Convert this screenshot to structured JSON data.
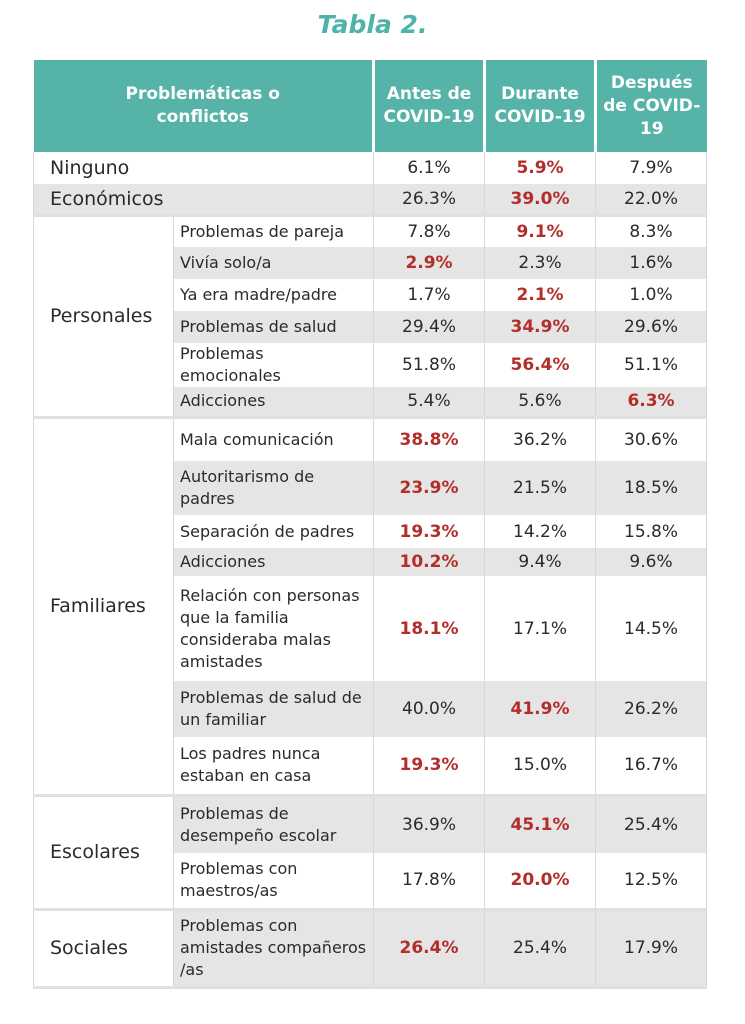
{
  "title": "Tabla 2.",
  "header": {
    "col1": "Problemáticas o conflictos",
    "col2": "Antes de COVID-19",
    "col3": "Durante COVID-19",
    "col4": "Después de COVID-19"
  },
  "colors": {
    "accent": "#56b3a8",
    "title": "#4fb3a9",
    "highlight": "#b32e2a",
    "stripe": "#e5e5e5"
  },
  "rows": [
    {
      "cat": "Ninguno",
      "v": [
        "6.1%",
        "5.9%",
        "7.9%"
      ],
      "hl": 1
    },
    {
      "cat": "Económicos",
      "v": [
        "26.3%",
        "39.0%",
        "22.0%"
      ],
      "hl": 1
    },
    {
      "cat": "Personales",
      "sub": "Problemas de pareja",
      "v": [
        "7.8%",
        "9.1%",
        "8.3%"
      ],
      "hl": 1
    },
    {
      "sub": "Vivía solo/a",
      "v": [
        "2.9%",
        "2.3%",
        "1.6%"
      ],
      "hl": 0
    },
    {
      "sub": "Ya era madre/padre",
      "v": [
        "1.7%",
        "2.1%",
        "1.0%"
      ],
      "hl": 1
    },
    {
      "sub": "Problemas de salud",
      "v": [
        "29.4%",
        "34.9%",
        "29.6%"
      ],
      "hl": 1
    },
    {
      "sub": "Problemas emocionales",
      "v": [
        "51.8%",
        "56.4%",
        "51.1%"
      ],
      "hl": 1
    },
    {
      "sub": "Adicciones",
      "v": [
        "5.4%",
        "5.6%",
        "6.3%"
      ],
      "hl": 2
    },
    {
      "cat": "Familiares",
      "sub": "Mala comunicación",
      "v": [
        "38.8%",
        "36.2%",
        "30.6%"
      ],
      "hl": 0
    },
    {
      "sub": "Autoritarismo de padres",
      "v": [
        "23.9%",
        "21.5%",
        "18.5%"
      ],
      "hl": 0
    },
    {
      "sub": "Separación de padres",
      "v": [
        "19.3%",
        "14.2%",
        "15.8%"
      ],
      "hl": 0
    },
    {
      "sub": "Adicciones",
      "v": [
        "10.2%",
        "9.4%",
        "9.6%"
      ],
      "hl": 0
    },
    {
      "sub": "Relación con personas que la familia consideraba malas amistades",
      "v": [
        "18.1%",
        "17.1%",
        "14.5%"
      ],
      "hl": 0
    },
    {
      "sub": "Problemas de salud de un familiar",
      "v": [
        "40.0%",
        "41.9%",
        "26.2%"
      ],
      "hl": 1
    },
    {
      "sub": "Los padres nunca estaban en casa",
      "v": [
        "19.3%",
        "15.0%",
        "16.7%"
      ],
      "hl": 0
    },
    {
      "cat": "Escolares",
      "sub": "Problemas de desempeño escolar",
      "v": [
        "36.9%",
        "45.1%",
        "25.4%"
      ],
      "hl": 1
    },
    {
      "sub": "Problemas con maestros/as",
      "v": [
        "17.8%",
        "20.0%",
        "12.5%"
      ],
      "hl": 1
    },
    {
      "cat": "Sociales",
      "sub": "Problemas con amistades compañeros /as",
      "v": [
        "26.4%",
        "25.4%",
        "17.9%"
      ],
      "hl": 0
    }
  ]
}
